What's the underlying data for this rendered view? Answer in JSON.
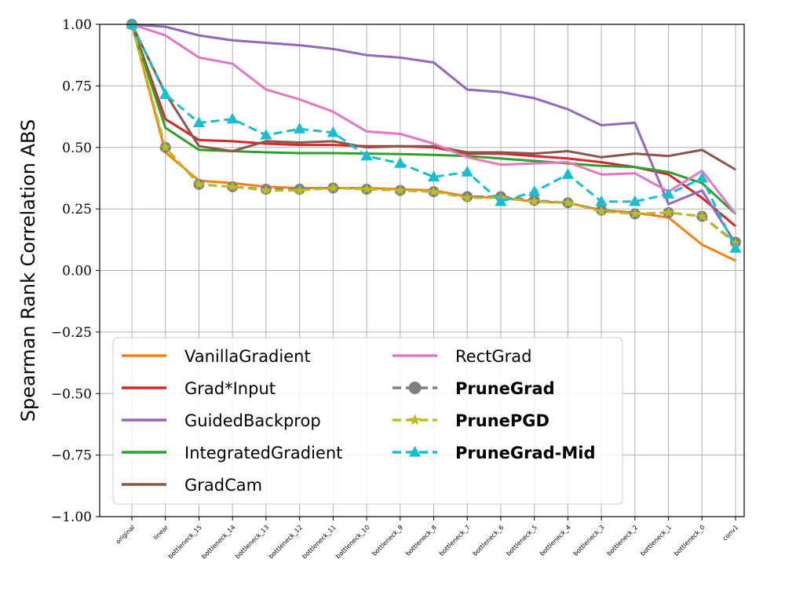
{
  "chart_data": {
    "type": "line",
    "title": "",
    "xlabel": "",
    "ylabel": "Spearman Rank Correlation ABS",
    "ylim": [
      -1.0,
      1.0
    ],
    "yticks": [
      -1.0,
      -0.75,
      -0.5,
      -0.25,
      0.0,
      0.25,
      0.5,
      0.75,
      1.0
    ],
    "ytick_labels": [
      "−1.00",
      "−0.75",
      "−0.50",
      "−0.25",
      "0.00",
      "0.25",
      "0.50",
      "0.75",
      "1.00"
    ],
    "grid": true,
    "legend_placement": "lower-left",
    "categories": [
      "original",
      "linear",
      "bottleneck_15",
      "bottleneck_14",
      "bottleneck_13",
      "bottleneck_12",
      "bottleneck_11",
      "bottleneck_10",
      "bottleneck_9",
      "bottleneck_8",
      "bottleneck_7",
      "bottleneck_6",
      "bottleneck_5",
      "bottleneck_4",
      "bottleneck_3",
      "bottleneck_2",
      "bottleneck_1",
      "bottleneck_0",
      "conv1"
    ],
    "series": [
      {
        "name": "VanillaGradient",
        "color": "#ff7f0e",
        "style": "solid",
        "marker": "none",
        "bold": false,
        "values": [
          1.0,
          0.48,
          0.365,
          0.355,
          0.34,
          0.335,
          0.335,
          0.335,
          0.33,
          0.325,
          0.3,
          0.295,
          0.28,
          0.275,
          0.245,
          0.235,
          0.215,
          0.105,
          0.04
        ]
      },
      {
        "name": "Grad*Input",
        "color": "#d62728",
        "style": "solid",
        "marker": "none",
        "bold": false,
        "values": [
          1.0,
          0.615,
          0.53,
          0.525,
          0.515,
          0.51,
          0.51,
          0.505,
          0.505,
          0.5,
          0.475,
          0.475,
          0.465,
          0.455,
          0.44,
          0.42,
          0.39,
          0.295,
          0.18
        ]
      },
      {
        "name": "GuidedBackprop",
        "color": "#9467bd",
        "style": "solid",
        "marker": "none",
        "bold": false,
        "values": [
          1.0,
          0.99,
          0.955,
          0.935,
          0.925,
          0.915,
          0.9,
          0.875,
          0.865,
          0.845,
          0.735,
          0.725,
          0.7,
          0.655,
          0.59,
          0.6,
          0.27,
          0.325,
          0.11
        ]
      },
      {
        "name": "IntegratedGradient",
        "color": "#2ca02c",
        "style": "solid",
        "marker": "none",
        "bold": false,
        "values": [
          1.0,
          0.58,
          0.49,
          0.485,
          0.48,
          0.477,
          0.477,
          0.475,
          0.473,
          0.47,
          0.465,
          0.455,
          0.445,
          0.435,
          0.425,
          0.42,
          0.4,
          0.355,
          0.23
        ]
      },
      {
        "name": "GradCam",
        "color": "#8c564b",
        "style": "solid",
        "marker": "none",
        "bold": false,
        "values": [
          1.0,
          0.72,
          0.505,
          0.485,
          0.525,
          0.52,
          0.525,
          0.5,
          0.505,
          0.505,
          0.48,
          0.48,
          0.475,
          0.485,
          0.46,
          0.475,
          0.465,
          0.49,
          0.41
        ]
      },
      {
        "name": "RectGrad",
        "color": "#e377c2",
        "style": "solid",
        "marker": "none",
        "bold": false,
        "values": [
          1.0,
          0.955,
          0.865,
          0.84,
          0.735,
          0.695,
          0.645,
          0.565,
          0.555,
          0.515,
          0.46,
          0.43,
          0.435,
          0.44,
          0.39,
          0.395,
          0.32,
          0.405,
          0.23
        ]
      },
      {
        "name": "PruneGrad",
        "color": "#7f7f7f",
        "style": "dashed",
        "marker": "circle",
        "bold": true,
        "values": [
          1.0,
          0.5,
          0.35,
          0.34,
          0.33,
          0.33,
          0.335,
          0.33,
          0.325,
          0.32,
          0.3,
          0.3,
          0.285,
          0.275,
          0.245,
          0.23,
          0.235,
          0.22,
          0.115
        ]
      },
      {
        "name": "PrunePGD",
        "color": "#bcbd22",
        "style": "dashed",
        "marker": "star",
        "bold": true,
        "values": [
          1.0,
          0.5,
          0.35,
          0.34,
          0.325,
          0.325,
          0.335,
          0.33,
          0.325,
          0.32,
          0.295,
          0.295,
          0.28,
          0.275,
          0.24,
          0.23,
          0.235,
          0.22,
          0.11
        ]
      },
      {
        "name": "PruneGrad-Mid",
        "color": "#17becf",
        "style": "dashed",
        "marker": "triangle",
        "bold": true,
        "values": [
          1.0,
          0.715,
          0.6,
          0.615,
          0.55,
          0.575,
          0.56,
          0.465,
          0.435,
          0.38,
          0.4,
          0.28,
          0.32,
          0.39,
          0.28,
          0.28,
          0.31,
          0.375,
          0.09
        ]
      }
    ]
  }
}
